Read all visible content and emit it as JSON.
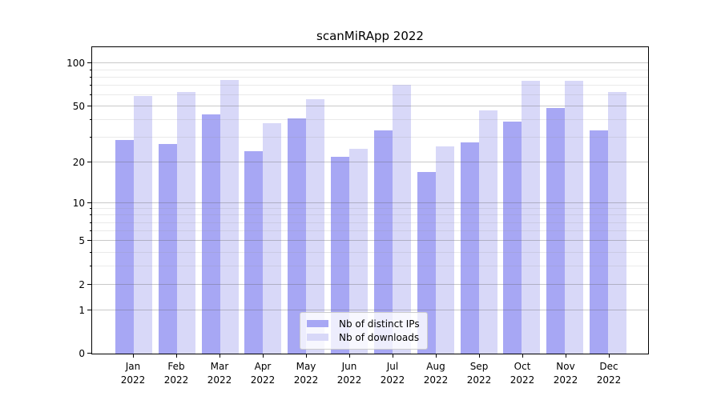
{
  "title": "scanMiRApp 2022",
  "chart_data": {
    "type": "bar",
    "title": "scanMiRApp 2022",
    "categories": [
      "Jan",
      "Feb",
      "Mar",
      "Apr",
      "May",
      "Jun",
      "Jul",
      "Aug",
      "Sep",
      "Oct",
      "Nov",
      "Dec"
    ],
    "category_year": "2022",
    "series": [
      {
        "name": "Nb of distinct IPs",
        "color": "#a7a7f4",
        "values": [
          29,
          27,
          44,
          24,
          41,
          22,
          34,
          17,
          28,
          39,
          49,
          34
        ]
      },
      {
        "name": "Nb of downloads",
        "color": "#d8d8f8",
        "values": [
          59,
          63,
          77,
          38,
          56,
          25,
          71,
          26,
          47,
          76,
          76,
          63
        ]
      }
    ],
    "xlabel": "",
    "ylabel": "",
    "yscale": "log1p",
    "ylim": [
      0,
      130
    ],
    "yticks": [
      0,
      1,
      2,
      5,
      10,
      20,
      50,
      100
    ],
    "minor_yticks": [
      3,
      4,
      6,
      7,
      8,
      9,
      30,
      40,
      60,
      70,
      80,
      90
    ],
    "grid": "on",
    "legend_position": "lower center"
  },
  "colors": {
    "background": "#ffffff",
    "spine": "#000000",
    "major_grid": "#646464",
    "major_grid_opacity": 0.35,
    "minor_grid": "#969696",
    "minor_grid_opacity": 0.2,
    "text": "#000000",
    "legend_border": "#cccccc"
  }
}
